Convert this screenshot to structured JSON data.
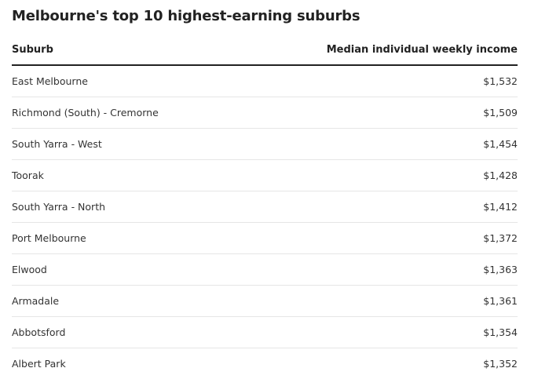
{
  "title": "Melbourne's top 10 highest-earning suburbs",
  "columns": {
    "suburb": "Suburb",
    "income": "Median individual weekly income"
  },
  "rows": [
    {
      "suburb": "East Melbourne",
      "income": "$1,532"
    },
    {
      "suburb": "Richmond (South) - Cremorne",
      "income": "$1,509"
    },
    {
      "suburb": "South Yarra - West",
      "income": "$1,454"
    },
    {
      "suburb": "Toorak",
      "income": "$1,428"
    },
    {
      "suburb": "South Yarra - North",
      "income": "$1,412"
    },
    {
      "suburb": "Port Melbourne",
      "income": "$1,372"
    },
    {
      "suburb": "Elwood",
      "income": "$1,363"
    },
    {
      "suburb": "Armadale",
      "income": "$1,361"
    },
    {
      "suburb": "Abbotsford",
      "income": "$1,354"
    },
    {
      "suburb": "Albert Park",
      "income": "$1,352"
    }
  ],
  "chart_data": {
    "type": "table",
    "title": "Melbourne's top 10 highest-earning suburbs",
    "columns": [
      "Suburb",
      "Median individual weekly income"
    ],
    "rows": [
      [
        "East Melbourne",
        "$1,532"
      ],
      [
        "Richmond (South) - Cremorne",
        "$1,509"
      ],
      [
        "South Yarra - West",
        "$1,454"
      ],
      [
        "Toorak",
        "$1,428"
      ],
      [
        "South Yarra - North",
        "$1,412"
      ],
      [
        "Port Melbourne",
        "$1,372"
      ],
      [
        "Elwood",
        "$1,363"
      ],
      [
        "Armadale",
        "$1,361"
      ],
      [
        "Abbotsford",
        "$1,354"
      ],
      [
        "Albert Park",
        "$1,352"
      ]
    ]
  }
}
